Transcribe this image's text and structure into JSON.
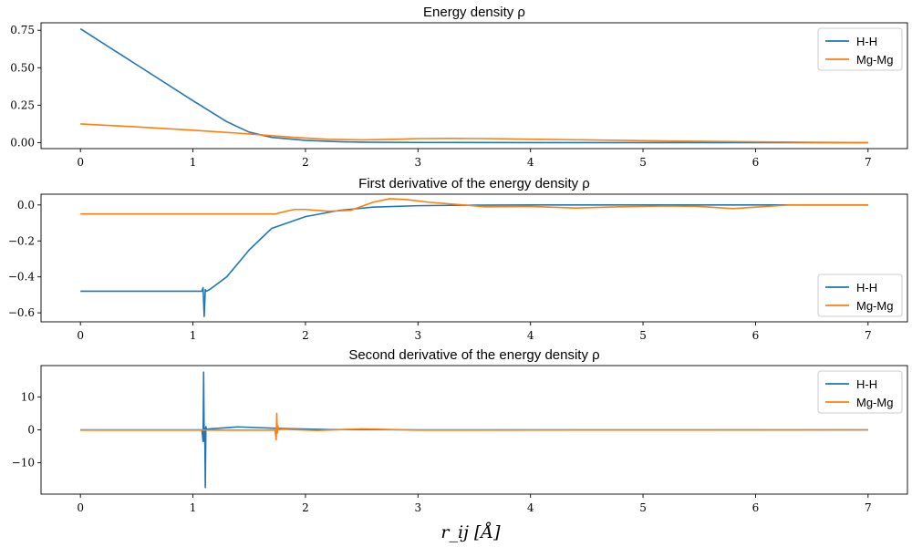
{
  "figure": {
    "xlabel": "r_ij [Å]"
  },
  "colors": {
    "H-H": "#1f77b4",
    "Mg-Mg": "#ff7f0e"
  },
  "chart_data": [
    {
      "type": "line",
      "title": "Energy density ρ",
      "xlim": [
        -0.35,
        7.35
      ],
      "ylim": [
        -0.04,
        0.8
      ],
      "xticks": [
        0,
        1,
        2,
        3,
        4,
        5,
        6,
        7
      ],
      "yticks": [
        0.0,
        0.25,
        0.5,
        0.75
      ],
      "ytick_labels": [
        "0.00",
        "0.25",
        "0.50",
        "0.75"
      ],
      "legend": "upper right",
      "series": [
        {
          "name": "H-H",
          "x": [
            0,
            0.5,
            1.0,
            1.3,
            1.5,
            1.7,
            2.0,
            2.3,
            2.5,
            3.0,
            4.0,
            5.0,
            6.0,
            7.0
          ],
          "y": [
            0.76,
            0.52,
            0.28,
            0.14,
            0.07,
            0.035,
            0.015,
            0.006,
            0.003,
            0.001,
            0.0,
            0.0,
            0.0,
            0.0
          ]
        },
        {
          "name": "Mg-Mg",
          "x": [
            0,
            0.5,
            1.0,
            1.5,
            1.9,
            2.2,
            2.5,
            2.8,
            3.0,
            3.3,
            3.6,
            4.0,
            4.5,
            5.0,
            5.5,
            6.0,
            6.5,
            7.0
          ],
          "y": [
            0.125,
            0.105,
            0.083,
            0.058,
            0.035,
            0.022,
            0.018,
            0.022,
            0.027,
            0.028,
            0.027,
            0.023,
            0.018,
            0.013,
            0.009,
            0.005,
            0.002,
            0.0
          ]
        }
      ]
    },
    {
      "type": "line",
      "title": "First derivative of the energy density ρ",
      "xlim": [
        -0.35,
        7.35
      ],
      "ylim": [
        -0.65,
        0.06
      ],
      "xticks": [
        0,
        1,
        2,
        3,
        4,
        5,
        6,
        7
      ],
      "yticks": [
        -0.6,
        -0.4,
        -0.2,
        0.0
      ],
      "ytick_labels": [
        "−0.6",
        "−0.4",
        "−0.2",
        "0.0"
      ],
      "legend": "lower right",
      "series": [
        {
          "name": "H-H",
          "x": [
            0,
            0.5,
            1.08,
            1.09,
            1.1,
            1.11,
            1.12,
            1.15,
            1.3,
            1.5,
            1.7,
            2.0,
            2.3,
            2.6,
            3.0,
            3.5,
            4.0,
            5.0,
            6.0,
            7.0
          ],
          "y": [
            -0.48,
            -0.48,
            -0.48,
            -0.46,
            -0.62,
            -0.47,
            -0.48,
            -0.47,
            -0.4,
            -0.25,
            -0.13,
            -0.065,
            -0.03,
            -0.012,
            -0.004,
            -0.001,
            0.0,
            0.0,
            0.0,
            0.0
          ]
        },
        {
          "name": "Mg-Mg",
          "x": [
            0,
            1.0,
            1.74,
            1.76,
            1.9,
            2.0,
            2.2,
            2.4,
            2.6,
            2.75,
            2.9,
            3.1,
            3.4,
            3.6,
            4.0,
            4.4,
            4.8,
            5.2,
            5.5,
            5.8,
            6.0,
            6.3,
            6.6,
            7.0
          ],
          "y": [
            -0.05,
            -0.05,
            -0.05,
            -0.045,
            -0.025,
            -0.025,
            -0.035,
            -0.03,
            0.015,
            0.035,
            0.03,
            0.015,
            0.0,
            -0.01,
            -0.008,
            -0.017,
            -0.01,
            -0.006,
            -0.008,
            -0.02,
            -0.012,
            0.0,
            0.0,
            0.0
          ]
        }
      ]
    },
    {
      "type": "line",
      "title": "Second derivative of the energy density ρ",
      "xlim": [
        -0.35,
        7.35
      ],
      "ylim": [
        -19.5,
        19.5
      ],
      "xticks": [
        0,
        1,
        2,
        3,
        4,
        5,
        6,
        7
      ],
      "yticks": [
        -10,
        0,
        10
      ],
      "ytick_labels": [
        "−10",
        "0",
        "10"
      ],
      "legend": "upper right",
      "series": [
        {
          "name": "H-H",
          "x": [
            0,
            1.08,
            1.09,
            1.095,
            1.1,
            1.105,
            1.11,
            1.115,
            1.12,
            1.15,
            1.4,
            1.8,
            2.2,
            3.0,
            7.0
          ],
          "y": [
            0,
            0,
            -3.5,
            17.5,
            -3.5,
            0.5,
            -17.5,
            1.0,
            0.2,
            0.3,
            0.9,
            0.4,
            0.1,
            0.0,
            0.0
          ]
        },
        {
          "name": "Mg-Mg",
          "x": [
            0,
            1.0,
            1.73,
            1.74,
            1.745,
            1.75,
            1.755,
            1.76,
            1.8,
            2.1,
            2.5,
            3.0,
            7.0
          ],
          "y": [
            -0.1,
            -0.1,
            -0.1,
            -3.0,
            5.0,
            -1.0,
            1.2,
            0.1,
            0.2,
            -0.2,
            0.3,
            -0.1,
            0.0
          ]
        }
      ]
    }
  ]
}
